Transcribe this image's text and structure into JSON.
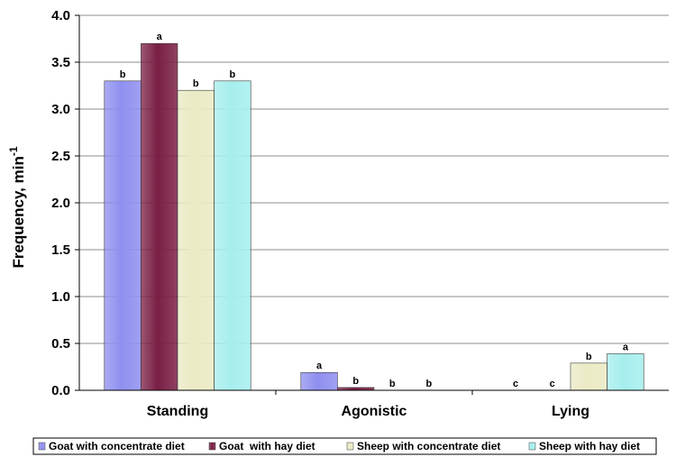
{
  "chart_data": {
    "type": "bar",
    "categories": [
      "Standing",
      "Agonistic",
      "Lying"
    ],
    "ylabel": "Frequency, min",
    "ylabel_sup": "-1",
    "ylim": [
      0,
      4
    ],
    "yticks": [
      "0.0",
      "0.5",
      "1.0",
      "1.5",
      "2.0",
      "2.5",
      "3.0",
      "3.5",
      "4.0"
    ],
    "grid": true,
    "legend_position": "bottom",
    "series": [
      {
        "name": "Goat with concentrate diet",
        "values": [
          3.3,
          0.19,
          0.0
        ],
        "labels": [
          "b",
          "a",
          "c"
        ],
        "color": "#8f8ff0"
      },
      {
        "name": "Goat  with hay diet",
        "values": [
          3.7,
          0.03,
          0.0
        ],
        "labels": [
          "a",
          "b",
          "c"
        ],
        "color": "#7a1f45"
      },
      {
        "name": "Sheep with concentrate diet",
        "values": [
          3.2,
          0.0,
          0.29
        ],
        "labels": [
          "b",
          "b",
          "b"
        ],
        "color": "#eaeac4"
      },
      {
        "name": "Sheep with hay diet",
        "values": [
          3.3,
          0.0,
          0.39
        ],
        "labels": [
          "b",
          "b",
          "a"
        ],
        "color": "#a6eeee"
      }
    ]
  }
}
